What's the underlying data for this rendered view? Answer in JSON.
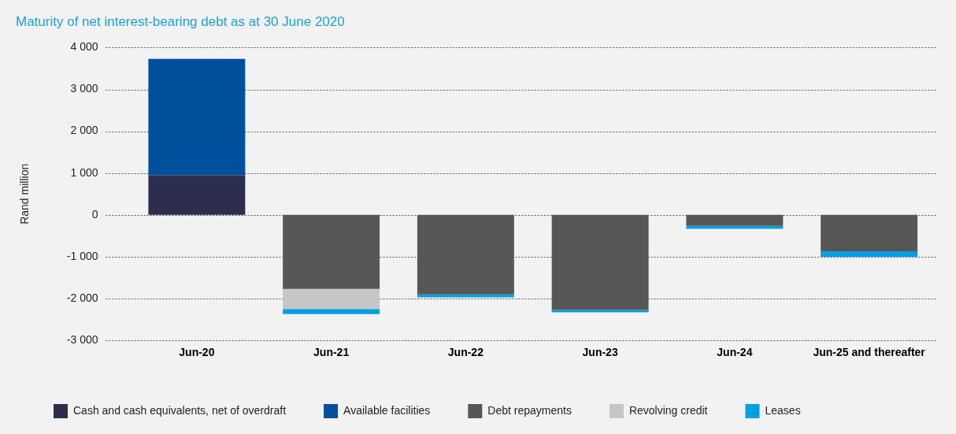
{
  "chart_data": {
    "type": "bar",
    "title": "Maturity of net interest-bearing debt as at 30 June 2020",
    "ylabel": "Rand million",
    "categories": [
      "Jun-20",
      "Jun-21",
      "Jun-22",
      "Jun-23",
      "Jun-24",
      "Jun-25 and thereafter"
    ],
    "stacked": true,
    "series": [
      {
        "name": "Cash and cash equivalents, net of overdraft",
        "color": "#2d2d4f",
        "values": [
          950,
          null,
          null,
          null,
          null,
          null
        ]
      },
      {
        "name": "Available facilities",
        "color": "#00509e",
        "values": [
          2780,
          null,
          null,
          null,
          null,
          null
        ]
      },
      {
        "name": "Debt repayments",
        "color": "#575756",
        "values": [
          null,
          -1770,
          -1900,
          -2270,
          -260,
          -870
        ]
      },
      {
        "name": "Revolving credit",
        "color": "#c6c6c6",
        "values": [
          null,
          -480,
          null,
          null,
          null,
          null
        ]
      },
      {
        "name": "Leases",
        "color": "#009fe3",
        "values": [
          null,
          -120,
          -70,
          -60,
          -70,
          -130
        ]
      }
    ],
    "ylim": [
      -3000,
      4000
    ],
    "yticks": [
      {
        "value": -3000,
        "label": "-3 000"
      },
      {
        "value": -2000,
        "label": "-2 000"
      },
      {
        "value": -1000,
        "label": "-1 000"
      },
      0,
      {
        "value": 1000,
        "label": "1 000"
      },
      {
        "value": 2000,
        "label": "2 000"
      },
      {
        "value": 3000,
        "label": "3 000"
      },
      {
        "value": 4000,
        "label": "4 000"
      }
    ],
    "grid": "y",
    "legend": "bottom"
  }
}
